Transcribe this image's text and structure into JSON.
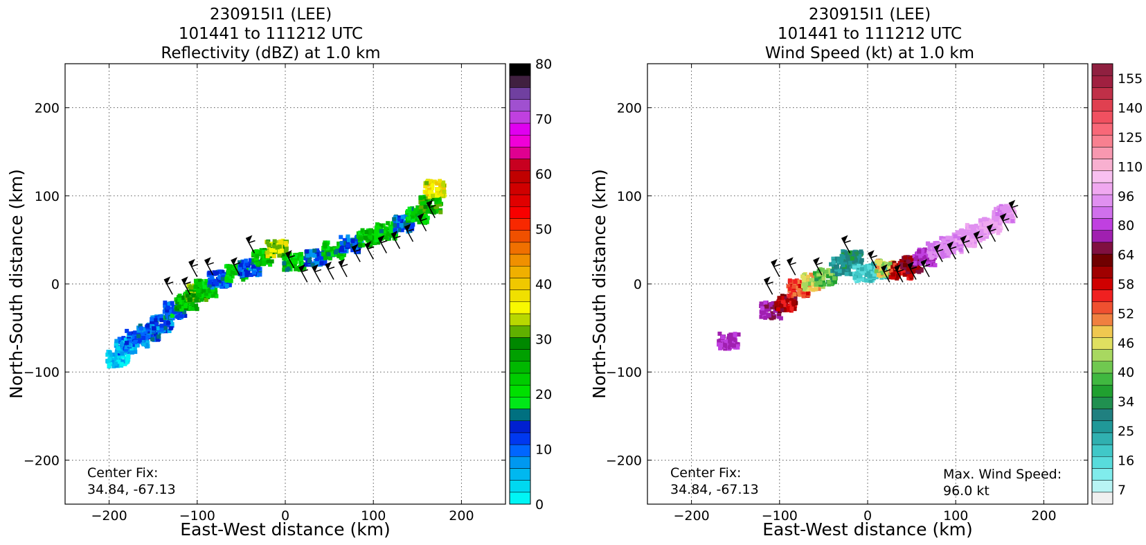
{
  "chart_data": [
    {
      "type": "heatmap",
      "title_lines": [
        "230915I1 (LEE)",
        "101441 to 111212 UTC",
        "Reflectivity (dBZ) at 1.0 km"
      ],
      "xlabel": "East-West distance (km)",
      "ylabel": "North-South distance (km)",
      "xlim": [
        -250,
        250
      ],
      "ylim": [
        -250,
        250
      ],
      "xticks": [
        -200,
        -100,
        0,
        100,
        200
      ],
      "yticks": [
        -200,
        -100,
        0,
        100,
        200
      ],
      "grid": true,
      "annotation_lines": [
        "Center Fix:",
        "34.84, -67.13"
      ],
      "colorbar": {
        "label_values": [
          0,
          10,
          20,
          30,
          40,
          50,
          60,
          70,
          80
        ],
        "range": [
          0,
          80
        ],
        "colors": [
          "#00f5f5",
          "#00d8f0",
          "#00b8f0",
          "#0098f0",
          "#0066ff",
          "#0038f0",
          "#0020d0",
          "#007080",
          "#00e818",
          "#00e000",
          "#00cc00",
          "#00b800",
          "#00a000",
          "#008800",
          "#60b000",
          "#b8d800",
          "#f8f800",
          "#f0e000",
          "#f0c800",
          "#f0b000",
          "#f09000",
          "#f07000",
          "#f05000",
          "#f82800",
          "#f80000",
          "#e00000",
          "#d00000",
          "#c00000",
          "#c80020",
          "#e00090",
          "#f000d8",
          "#e000f0",
          "#c040e0",
          "#a050d0",
          "#7040a0",
          "#402040",
          "#000000"
        ]
      },
      "field": [
        {
          "x": -190,
          "y": -85,
          "v": 4
        },
        {
          "x": -180,
          "y": -70,
          "v": 8
        },
        {
          "x": -168,
          "y": -62,
          "v": 10
        },
        {
          "x": -155,
          "y": -55,
          "v": 12
        },
        {
          "x": -140,
          "y": -45,
          "v": 11
        },
        {
          "x": -125,
          "y": -30,
          "v": 13
        },
        {
          "x": -112,
          "y": -20,
          "v": 25
        },
        {
          "x": -100,
          "y": -10,
          "v": 30
        },
        {
          "x": -90,
          "y": -5,
          "v": 24
        },
        {
          "x": -75,
          "y": 5,
          "v": 12
        },
        {
          "x": -55,
          "y": 12,
          "v": 22
        },
        {
          "x": -40,
          "y": 18,
          "v": 12
        },
        {
          "x": -25,
          "y": 30,
          "v": 24
        },
        {
          "x": -10,
          "y": 40,
          "v": 35
        },
        {
          "x": 10,
          "y": 25,
          "v": 22
        },
        {
          "x": 35,
          "y": 30,
          "v": 12
        },
        {
          "x": 55,
          "y": 38,
          "v": 22
        },
        {
          "x": 75,
          "y": 45,
          "v": 12
        },
        {
          "x": 95,
          "y": 52,
          "v": 24
        },
        {
          "x": 115,
          "y": 60,
          "v": 22
        },
        {
          "x": 135,
          "y": 68,
          "v": 12
        },
        {
          "x": 150,
          "y": 78,
          "v": 22
        },
        {
          "x": 165,
          "y": 90,
          "v": 28
        },
        {
          "x": 170,
          "y": 108,
          "v": 38
        }
      ],
      "wind_barbs": [
        {
          "x": -128,
          "y": -12
        },
        {
          "x": -108,
          "y": -12
        },
        {
          "x": -100,
          "y": 8
        },
        {
          "x": -82,
          "y": 10
        },
        {
          "x": -52,
          "y": 10
        },
        {
          "x": -35,
          "y": 35
        },
        {
          "x": 10,
          "y": 18
        },
        {
          "x": 25,
          "y": 2
        },
        {
          "x": 40,
          "y": 2
        },
        {
          "x": 55,
          "y": 5
        },
        {
          "x": 70,
          "y": 8
        },
        {
          "x": 85,
          "y": 25
        },
        {
          "x": 100,
          "y": 28
        },
        {
          "x": 115,
          "y": 35
        },
        {
          "x": 130,
          "y": 40
        },
        {
          "x": 145,
          "y": 48
        },
        {
          "x": 160,
          "y": 60
        },
        {
          "x": 170,
          "y": 75
        }
      ]
    },
    {
      "type": "heatmap",
      "title_lines": [
        "230915I1 (LEE)",
        "101441 to 111212 UTC",
        "Wind Speed (kt) at 1.0 km"
      ],
      "xlabel": "East-West distance (km)",
      "ylabel": "North-South distance (km)",
      "xlim": [
        -250,
        250
      ],
      "ylim": [
        -250,
        250
      ],
      "xticks": [
        -200,
        -100,
        0,
        100,
        200
      ],
      "yticks": [
        -200,
        -100,
        0,
        100,
        200
      ],
      "grid": true,
      "annotation_lines": [
        "Center Fix:",
        "34.84, -67.13"
      ],
      "annotation_right_lines": [
        "Max. Wind Speed:",
        "96.0 kt"
      ],
      "colorbar": {
        "label_values": [
          7,
          16,
          25,
          34,
          40,
          46,
          52,
          58,
          64,
          80,
          96,
          110,
          125,
          140,
          155
        ],
        "colors": [
          "#f0f0f0",
          "#b8f4f4",
          "#80ecec",
          "#58dcdc",
          "#40c8c8",
          "#30b0b0",
          "#209898",
          "#208080",
          "#209050",
          "#20a030",
          "#40b840",
          "#70c850",
          "#a8d860",
          "#e0e060",
          "#f0c850",
          "#f08040",
          "#f05030",
          "#f02020",
          "#d00000",
          "#a00000",
          "#700000",
          "#801040",
          "#a020b0",
          "#c040e0",
          "#d070ec",
          "#e090f0",
          "#f0a8f0",
          "#f8c0f0",
          "#f8b0d0",
          "#f898b0",
          "#f88090",
          "#f86878",
          "#f05060",
          "#e04050",
          "#c03048",
          "#a02040",
          "#902040"
        ]
      },
      "field": [
        {
          "x": -158,
          "y": -65,
          "v": 75
        },
        {
          "x": -110,
          "y": -30,
          "v": 72
        },
        {
          "x": -92,
          "y": -22,
          "v": 60
        },
        {
          "x": -78,
          "y": -5,
          "v": 55
        },
        {
          "x": -62,
          "y": 2,
          "v": 46
        },
        {
          "x": -48,
          "y": 8,
          "v": 40
        },
        {
          "x": -30,
          "y": 20,
          "v": 28
        },
        {
          "x": -18,
          "y": 28,
          "v": 32
        },
        {
          "x": -5,
          "y": 12,
          "v": 20
        },
        {
          "x": 12,
          "y": 15,
          "v": 22
        },
        {
          "x": 22,
          "y": 18,
          "v": 46
        },
        {
          "x": 38,
          "y": 15,
          "v": 58
        },
        {
          "x": 50,
          "y": 22,
          "v": 64
        },
        {
          "x": 65,
          "y": 30,
          "v": 76
        },
        {
          "x": 80,
          "y": 38,
          "v": 88
        },
        {
          "x": 95,
          "y": 44,
          "v": 90
        },
        {
          "x": 110,
          "y": 52,
          "v": 92
        },
        {
          "x": 125,
          "y": 58,
          "v": 94
        },
        {
          "x": 140,
          "y": 65,
          "v": 96
        },
        {
          "x": 155,
          "y": 80,
          "v": 92
        }
      ],
      "wind_barbs": [
        {
          "x": -108,
          "y": -12
        },
        {
          "x": -100,
          "y": 8
        },
        {
          "x": -82,
          "y": 10
        },
        {
          "x": -52,
          "y": 10
        },
        {
          "x": -20,
          "y": 35
        },
        {
          "x": 10,
          "y": 18
        },
        {
          "x": 25,
          "y": 2
        },
        {
          "x": 40,
          "y": 2
        },
        {
          "x": 55,
          "y": 5
        },
        {
          "x": 70,
          "y": 8
        },
        {
          "x": 85,
          "y": 25
        },
        {
          "x": 100,
          "y": 28
        },
        {
          "x": 115,
          "y": 35
        },
        {
          "x": 130,
          "y": 40
        },
        {
          "x": 145,
          "y": 48
        },
        {
          "x": 160,
          "y": 60
        },
        {
          "x": 170,
          "y": 75
        }
      ]
    }
  ]
}
